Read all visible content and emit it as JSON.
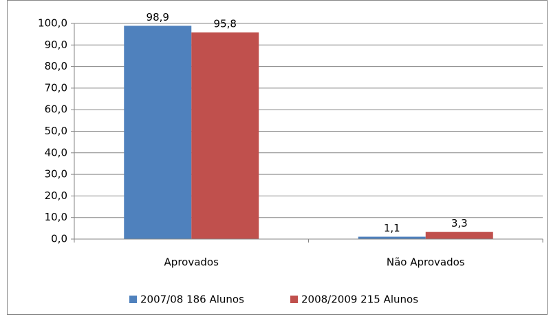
{
  "chart_data": {
    "type": "bar",
    "categories": [
      "Aprovados",
      "Não Aprovados"
    ],
    "series": [
      {
        "name": "2007/08 186 Alunos",
        "color": "#4f81bd",
        "values": [
          98.9,
          1.1
        ],
        "value_labels": [
          "98,9",
          "1,1"
        ]
      },
      {
        "name": "2008/2009 215 Alunos",
        "color": "#c0504d",
        "values": [
          95.8,
          3.3
        ],
        "value_labels": [
          "95,8",
          "3,3"
        ]
      }
    ],
    "ylim": [
      0,
      100
    ],
    "yticks": [
      {
        "value": 0,
        "label": "0,0"
      },
      {
        "value": 10,
        "label": "10,0"
      },
      {
        "value": 20,
        "label": "20,0"
      },
      {
        "value": 30,
        "label": "30,0"
      },
      {
        "value": 40,
        "label": "40,0"
      },
      {
        "value": 50,
        "label": "50,0"
      },
      {
        "value": 60,
        "label": "60,0"
      },
      {
        "value": 70,
        "label": "70,0"
      },
      {
        "value": 80,
        "label": "80,0"
      },
      {
        "value": 90,
        "label": "90,0"
      },
      {
        "value": 100,
        "label": "100,0"
      }
    ],
    "grid": true,
    "legend": "bottom"
  }
}
